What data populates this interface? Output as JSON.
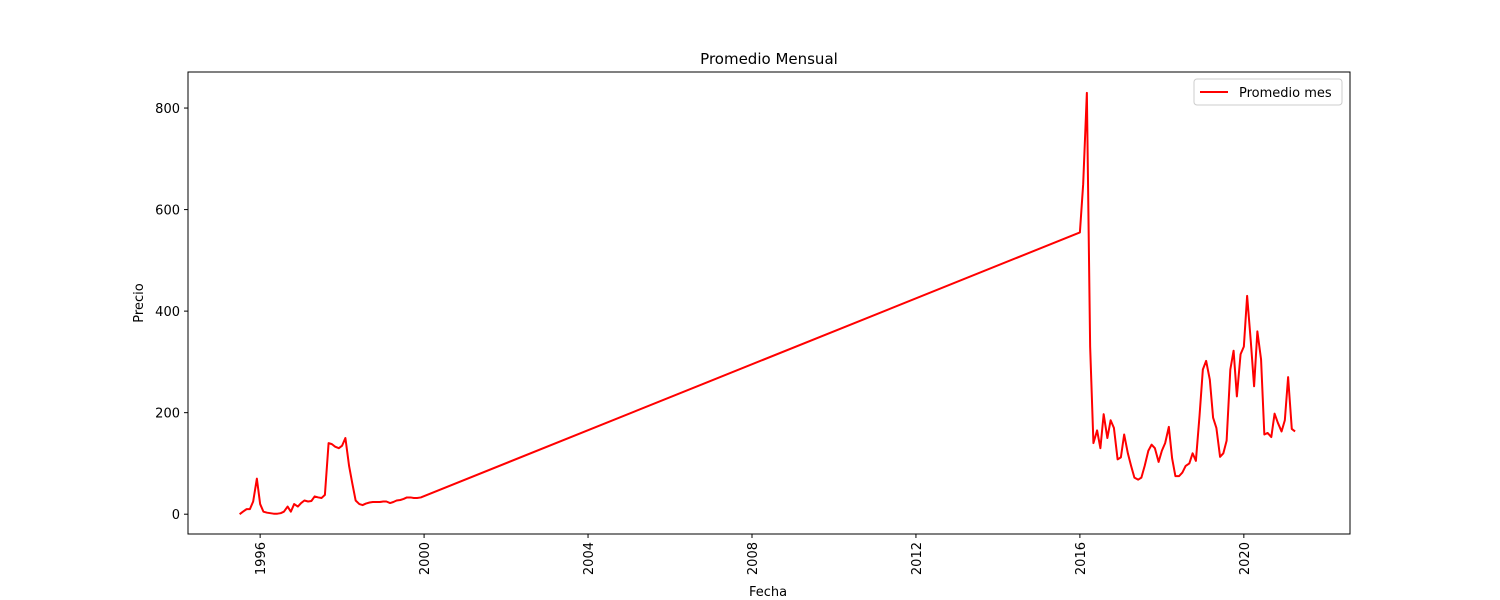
{
  "chart_data": {
    "type": "line",
    "title": "Promedio  Mensual",
    "x_label": "Fecha",
    "y_label": "Precio",
    "x": [
      1995.5,
      1995.58,
      1995.67,
      1995.75,
      1995.83,
      1995.92,
      1996.0,
      1996.08,
      1996.17,
      1996.25,
      1996.33,
      1996.42,
      1996.5,
      1996.58,
      1996.67,
      1996.75,
      1996.83,
      1996.92,
      1997.0,
      1997.08,
      1997.17,
      1997.25,
      1997.33,
      1997.42,
      1997.5,
      1997.58,
      1997.67,
      1997.75,
      1997.83,
      1997.92,
      1998.0,
      1998.08,
      1998.17,
      1998.25,
      1998.33,
      1998.42,
      1998.5,
      1998.58,
      1998.67,
      1998.75,
      1998.83,
      1998.92,
      1999.0,
      1999.08,
      1999.17,
      1999.25,
      1999.33,
      1999.42,
      1999.5,
      1999.58,
      1999.67,
      1999.75,
      1999.83,
      1999.92,
      2016.0,
      2016.08,
      2016.17,
      2016.25,
      2016.33,
      2016.42,
      2016.5,
      2016.58,
      2016.67,
      2016.75,
      2016.83,
      2016.92,
      2017.0,
      2017.08,
      2017.17,
      2017.25,
      2017.33,
      2017.42,
      2017.5,
      2017.58,
      2017.67,
      2017.75,
      2017.83,
      2017.92,
      2018.0,
      2018.08,
      2018.17,
      2018.25,
      2018.33,
      2018.42,
      2018.5,
      2018.58,
      2018.67,
      2018.75,
      2018.83,
      2018.92,
      2019.0,
      2019.08,
      2019.17,
      2019.25,
      2019.33,
      2019.42,
      2019.5,
      2019.58,
      2019.67,
      2019.75,
      2019.83,
      2019.92,
      2020.0,
      2020.08,
      2020.17,
      2020.25,
      2020.33,
      2020.42,
      2020.5,
      2020.58,
      2020.67,
      2020.75,
      2020.83,
      2020.92,
      2021.0,
      2021.08,
      2021.17,
      2021.25
    ],
    "series": [
      {
        "name": "Promedio mes",
        "color": "#ff0000",
        "values": [
          0,
          5,
          10,
          10,
          25,
          70,
          20,
          5,
          3,
          2,
          1,
          1,
          2,
          5,
          15,
          5,
          20,
          15,
          22,
          27,
          25,
          26,
          35,
          33,
          32,
          38,
          140,
          138,
          133,
          130,
          135,
          150,
          95,
          60,
          27,
          20,
          18,
          21,
          23,
          24,
          24,
          24,
          25,
          25,
          22,
          24,
          27,
          28,
          30,
          33,
          33,
          32,
          32,
          33,
          555,
          650,
          830,
          330,
          140,
          165,
          130,
          197,
          150,
          185,
          170,
          108,
          112,
          157,
          120,
          95,
          72,
          68,
          72,
          95,
          125,
          137,
          130,
          103,
          125,
          140,
          172,
          110,
          75,
          75,
          82,
          95,
          100,
          120,
          105,
          195,
          285,
          302,
          265,
          190,
          170,
          113,
          120,
          145,
          285,
          322,
          232,
          315,
          330,
          430,
          340,
          252,
          360,
          305,
          157,
          160,
          152,
          198,
          180,
          163,
          185,
          270,
          168,
          163
        ]
      }
    ],
    "xlim": [
      1994.24,
      2022.59
    ],
    "ylim": [
      -39,
      871
    ],
    "xticks": [
      1996,
      2000,
      2004,
      2008,
      2012,
      2016,
      2020
    ],
    "yticks": [
      0,
      200,
      400,
      600,
      800
    ],
    "legend": "upper right"
  }
}
